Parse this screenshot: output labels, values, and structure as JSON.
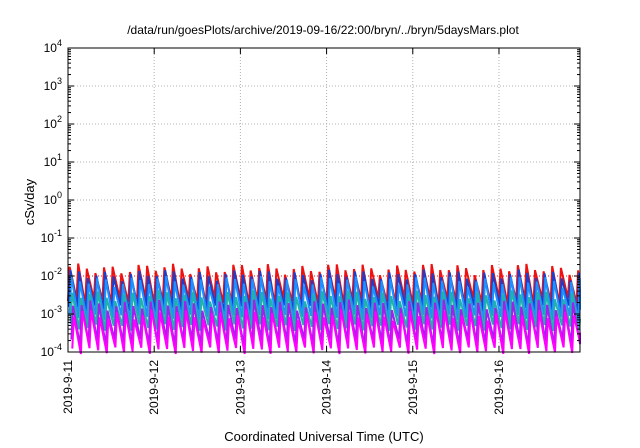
{
  "chart_data": {
    "type": "line",
    "title": "/data/run/goesPlots/archive/2019-09-16/22:00/bryn/../bryn/5daysMars.plot",
    "xlabel": "Coordinated Universal Time (UTC)",
    "ylabel": "cSv/day",
    "yscale": "log",
    "ylim": [
      0.0001,
      10000
    ],
    "xlim": [
      0,
      5.94
    ],
    "x_tick_labels": [
      "2019-9-11",
      "2019-9-12",
      "2019-9-13",
      "2019-9-14",
      "2019-9-15",
      "2019-9-16"
    ],
    "y_ticks": [
      {
        "base": "10",
        "exp": "-4"
      },
      {
        "base": "10",
        "exp": "-3"
      },
      {
        "base": "10",
        "exp": "-2"
      },
      {
        "base": "10",
        "exp": "-1"
      },
      {
        "base": "10",
        "exp": "0"
      },
      {
        "base": "10",
        "exp": "1"
      },
      {
        "base": "10",
        "exp": "2"
      },
      {
        "base": "10",
        "exp": "3"
      },
      {
        "base": "10",
        "exp": "4"
      }
    ],
    "grid": true,
    "sawtooth_period_days": 0.1,
    "series": [
      {
        "color": "#ee1111",
        "peak": 0.016,
        "trough": 0.0022,
        "phase": 0.0
      },
      {
        "color": "#1b3fcc",
        "peak": 0.011,
        "trough": 0.0014,
        "phase": 0.01
      },
      {
        "color": "#1e90ff",
        "peak": 0.0075,
        "trough": 0.0008,
        "phase": 0.02
      },
      {
        "color": "#20b2aa",
        "peak": 0.0032,
        "trough": 0.00045,
        "phase": 0.03
      },
      {
        "color": "#a020f0",
        "peak": 0.0018,
        "trough": 0.00018,
        "phase": 0.04
      },
      {
        "color": "#ff00ff",
        "peak": 0.001,
        "trough": 0.00011,
        "phase": 0.05
      }
    ],
    "reference_line": {
      "color": "#ee1111",
      "value": 0.01,
      "style": "dotted"
    }
  }
}
